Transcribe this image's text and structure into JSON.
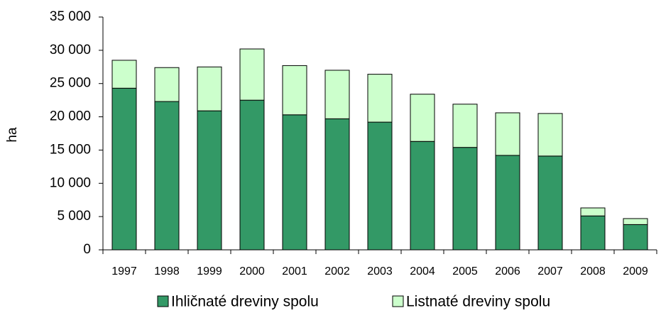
{
  "chart_data": {
    "type": "stacked_bar",
    "y_label": "ha",
    "categories": [
      "1997",
      "1998",
      "1999",
      "2000",
      "2001",
      "2002",
      "2003",
      "2004",
      "2005",
      "2006",
      "2007",
      "2008",
      "2009"
    ],
    "series": [
      {
        "name": "Ihličnaté dreviny spolu",
        "color": "#339966",
        "values": [
          24300,
          22300,
          20900,
          22500,
          20300,
          19700,
          19200,
          16300,
          15400,
          14200,
          14100,
          5100,
          3800
        ]
      },
      {
        "name": "Listnaté dreviny spolu",
        "color": "#ccffcc",
        "values": [
          4200,
          5100,
          6600,
          7700,
          7400,
          7300,
          7200,
          7100,
          6500,
          6400,
          6400,
          1200,
          900
        ]
      }
    ],
    "ylim": [
      0,
      35000
    ],
    "yticks": [
      0,
      {
        "value": 5000,
        "label": "5 000"
      },
      {
        "value": 10000,
        "label": "10 000"
      },
      {
        "value": 15000,
        "label": "15 000"
      },
      {
        "value": 20000,
        "label": "20 000"
      },
      {
        "value": 25000,
        "label": "25 000"
      },
      {
        "value": 30000,
        "label": "30 000"
      },
      {
        "value": 35000,
        "label": "35 000"
      }
    ],
    "legend": "bottom"
  }
}
